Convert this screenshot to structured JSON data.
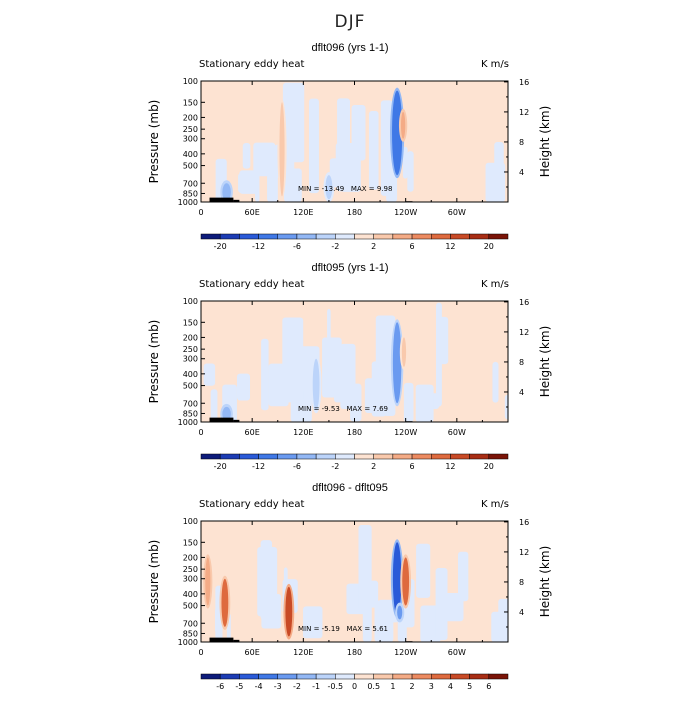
{
  "figure": {
    "title": "DJF"
  },
  "chart_data": [
    {
      "type": "heatmap",
      "title": "dflt096 (yrs 1-1)",
      "left_label": "Stationary eddy heat",
      "units": "K m/s",
      "ylabel": "Pressure (mb)",
      "ylabel_right": "Height (km)",
      "x_ticks": [
        "0",
        "60E",
        "120E",
        "180",
        "120W",
        "60W"
      ],
      "x_tick_values": [
        0,
        60,
        120,
        180,
        240,
        300
      ],
      "xlim": [
        0,
        360
      ],
      "y_ticks": [
        "100",
        "150",
        "200",
        "250",
        "300",
        "400",
        "500",
        "700",
        "850",
        "1000"
      ],
      "y_tick_values": [
        100,
        150,
        200,
        250,
        300,
        400,
        500,
        700,
        850,
        1000
      ],
      "ylim": [
        1000,
        100
      ],
      "y_scale": "log",
      "y2_ticks": [
        "4",
        "8",
        "12",
        "16"
      ],
      "y2_tick_values": [
        4,
        8,
        12,
        16
      ],
      "min_text": "MIN = -13.49",
      "max_text": "MAX = 9.98",
      "colorbar_labels": [
        "-20",
        "-12",
        "-6",
        "-2",
        "2",
        "6",
        "12",
        "20"
      ],
      "colorbar_colors": [
        "#0d1b7a",
        "#1c3cb4",
        "#2a5ad8",
        "#3f78e6",
        "#6a9af0",
        "#93b8f5",
        "#bcd4fa",
        "#dfeafd",
        "#fde3d2",
        "#f9c9ac",
        "#f4ab86",
        "#ec8a60",
        "#de6a3e",
        "#c84a26",
        "#a82d14",
        "#7a1408"
      ],
      "features": [
        {
          "lon": 230,
          "p_top": 120,
          "p_bot": 600,
          "width": 12,
          "value": -12
        },
        {
          "lon": 237,
          "p_top": 180,
          "p_bot": 300,
          "width": 5,
          "value": 6
        },
        {
          "lon": 95,
          "p_top": 150,
          "p_bot": 900,
          "width": 6,
          "value": 4
        },
        {
          "lon": 30,
          "p_top": 700,
          "p_bot": 980,
          "width": 10,
          "value": -6
        },
        {
          "lon": 150,
          "p_top": 600,
          "p_bot": 950,
          "width": 8,
          "value": -4
        }
      ]
    },
    {
      "type": "heatmap",
      "title": "dflt095 (yrs 1-1)",
      "left_label": "Stationary eddy heat",
      "units": "K m/s",
      "ylabel": "Pressure (mb)",
      "ylabel_right": "Height (km)",
      "x_ticks": [
        "0",
        "60E",
        "120E",
        "180",
        "120W",
        "60W"
      ],
      "x_tick_values": [
        0,
        60,
        120,
        180,
        240,
        300
      ],
      "xlim": [
        0,
        360
      ],
      "y_ticks": [
        "100",
        "150",
        "200",
        "250",
        "300",
        "400",
        "500",
        "700",
        "850",
        "1000"
      ],
      "y_tick_values": [
        100,
        150,
        200,
        250,
        300,
        400,
        500,
        700,
        850,
        1000
      ],
      "ylim": [
        1000,
        100
      ],
      "y_scale": "log",
      "y2_ticks": [
        "4",
        "8",
        "12",
        "16"
      ],
      "y2_tick_values": [
        4,
        8,
        12,
        16
      ],
      "min_text": "MIN = -9.53",
      "max_text": "MAX = 7.69",
      "colorbar_labels": [
        "-20",
        "-12",
        "-6",
        "-2",
        "2",
        "6",
        "12",
        "20"
      ],
      "colorbar_colors": [
        "#0d1b7a",
        "#1c3cb4",
        "#2a5ad8",
        "#3f78e6",
        "#6a9af0",
        "#93b8f5",
        "#bcd4fa",
        "#dfeafd",
        "#fde3d2",
        "#f9c9ac",
        "#f4ab86",
        "#ec8a60",
        "#de6a3e",
        "#c84a26",
        "#a82d14",
        "#7a1408"
      ],
      "features": [
        {
          "lon": 230,
          "p_top": 150,
          "p_bot": 700,
          "width": 10,
          "value": -8
        },
        {
          "lon": 238,
          "p_top": 200,
          "p_bot": 350,
          "width": 5,
          "value": 4
        },
        {
          "lon": 135,
          "p_top": 300,
          "p_bot": 800,
          "width": 8,
          "value": -5
        },
        {
          "lon": 30,
          "p_top": 750,
          "p_bot": 980,
          "width": 10,
          "value": -6
        }
      ]
    },
    {
      "type": "heatmap",
      "title": "dflt096 - dflt095",
      "left_label": "Stationary eddy heat",
      "units": "K m/s",
      "ylabel": "Pressure (mb)",
      "ylabel_right": "Height (km)",
      "x_ticks": [
        "0",
        "60E",
        "120E",
        "180",
        "120W",
        "60W"
      ],
      "x_tick_values": [
        0,
        60,
        120,
        180,
        240,
        300
      ],
      "xlim": [
        0,
        360
      ],
      "y_ticks": [
        "100",
        "150",
        "200",
        "250",
        "300",
        "400",
        "500",
        "700",
        "850",
        "1000"
      ],
      "y_tick_values": [
        100,
        150,
        200,
        250,
        300,
        400,
        500,
        700,
        850,
        1000
      ],
      "ylim": [
        1000,
        100
      ],
      "y_scale": "log",
      "y2_ticks": [
        "4",
        "8",
        "12",
        "16"
      ],
      "y2_tick_values": [
        4,
        8,
        12,
        16
      ],
      "min_text": "MIN = -5.19",
      "max_text": "MAX = 5.61",
      "colorbar_labels": [
        "-6",
        "-5",
        "-4",
        "-3",
        "-2",
        "-1",
        "-0.5",
        "0",
        "0.5",
        "1",
        "2",
        "3",
        "4",
        "5",
        "6"
      ],
      "colorbar_colors": [
        "#0d1b7a",
        "#1c3cb4",
        "#2a5ad8",
        "#3f78e6",
        "#6a9af0",
        "#93b8f5",
        "#bcd4fa",
        "#dfeafd",
        "#fde3d2",
        "#f9c9ac",
        "#f4ab86",
        "#ec8a60",
        "#de6a3e",
        "#c84a26",
        "#a82d14",
        "#7a1408"
      ],
      "features": [
        {
          "lon": 230,
          "p_top": 150,
          "p_bot": 600,
          "width": 10,
          "value": -4
        },
        {
          "lon": 240,
          "p_top": 200,
          "p_bot": 500,
          "width": 8,
          "value": 3
        },
        {
          "lon": 28,
          "p_top": 300,
          "p_bot": 750,
          "width": 8,
          "value": 3
        },
        {
          "lon": 103,
          "p_top": 350,
          "p_bot": 900,
          "width": 8,
          "value": 4
        },
        {
          "lon": 8,
          "p_top": 200,
          "p_bot": 500,
          "width": 6,
          "value": 2
        },
        {
          "lon": 233,
          "p_top": 500,
          "p_bot": 650,
          "width": 6,
          "value": -3
        }
      ]
    }
  ]
}
